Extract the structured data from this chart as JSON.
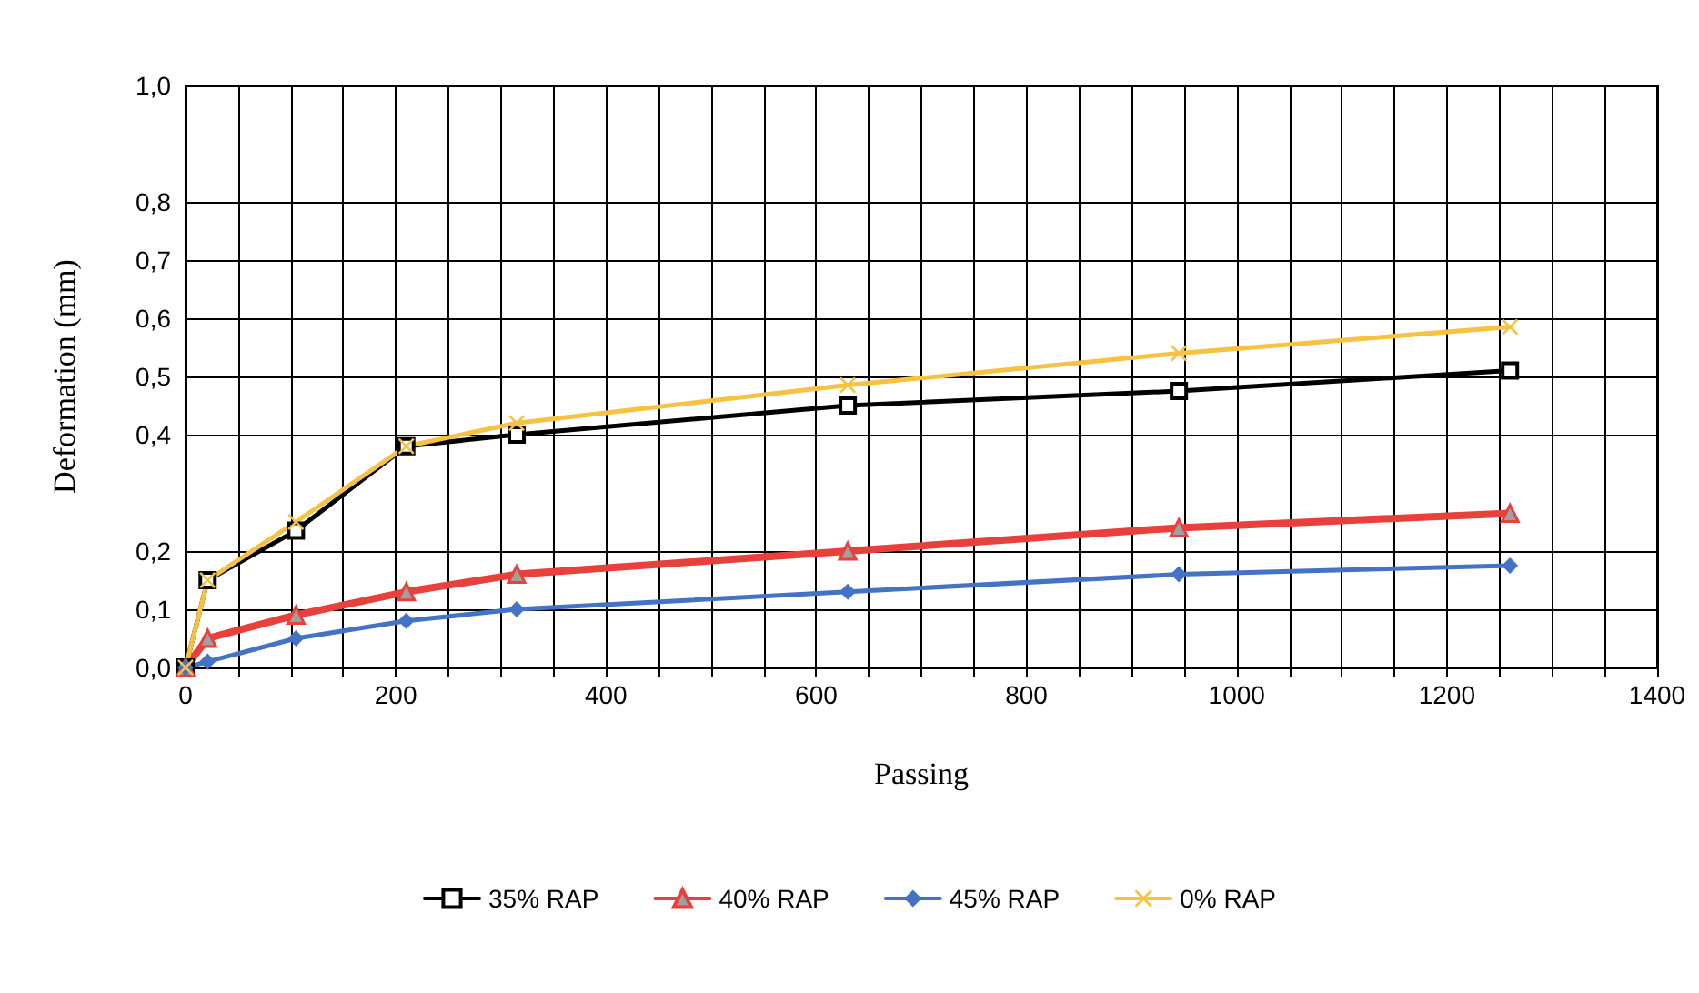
{
  "chart_data": {
    "type": "line",
    "xlabel": "Passing",
    "ylabel": "Deformation (mm)",
    "x": [
      0,
      21,
      105,
      210,
      315,
      630,
      945,
      1260
    ],
    "series": [
      {
        "name": "35% RAP",
        "color": "#000000",
        "marker": "square",
        "values": [
          0,
          0.15,
          0.235,
          0.38,
          0.4,
          0.45,
          0.475,
          0.51
        ]
      },
      {
        "name": "40% RAP",
        "color": "#e8403a",
        "marker": "triangle",
        "values": [
          0,
          0.05,
          0.09,
          0.13,
          0.16,
          0.2,
          0.24,
          0.265
        ]
      },
      {
        "name": "45% RAP",
        "color": "#4472c4",
        "marker": "diamond",
        "values": [
          0,
          0.01,
          0.05,
          0.08,
          0.1,
          0.13,
          0.16,
          0.175
        ]
      },
      {
        "name": "0% RAP",
        "color": "#f5c242",
        "marker": "cross",
        "values": [
          0,
          0.15,
          0.25,
          0.38,
          0.42,
          0.485,
          0.54,
          0.585
        ]
      }
    ],
    "xlim": [
      0,
      1400
    ],
    "xticks": [
      0,
      {
        "value": 50,
        "label": null
      },
      {
        "value": 100,
        "label": null
      },
      {
        "value": 150,
        "label": null
      },
      200,
      {
        "value": 250,
        "label": null
      },
      {
        "value": 300,
        "label": null
      },
      {
        "value": 350,
        "label": null
      },
      400,
      {
        "value": 450,
        "label": null
      },
      {
        "value": 500,
        "label": null
      },
      {
        "value": 550,
        "label": null
      },
      600,
      {
        "value": 650,
        "label": null
      },
      {
        "value": 700,
        "label": null
      },
      {
        "value": 750,
        "label": null
      },
      800,
      {
        "value": 850,
        "label": null
      },
      {
        "value": 900,
        "label": null
      },
      {
        "value": 950,
        "label": null
      },
      1000,
      {
        "value": 1050,
        "label": null
      },
      {
        "value": 1100,
        "label": null
      },
      {
        "value": 1150,
        "label": null
      },
      1200,
      {
        "value": 1250,
        "label": null
      },
      {
        "value": 1300,
        "label": null
      },
      {
        "value": 1350,
        "label": null
      },
      1400
    ],
    "ylim": [
      0,
      1
    ],
    "yticks": [
      {
        "value": 0,
        "label": "0,0"
      },
      {
        "value": 0.1,
        "label": "0,1"
      },
      {
        "value": 0.2,
        "label": "0,2"
      },
      {
        "value": 0.4,
        "label": "0,4"
      },
      {
        "value": 0.5,
        "label": "0,5"
      },
      {
        "value": 0.6,
        "label": "0,6"
      },
      {
        "value": 0.7,
        "label": "0,7"
      },
      {
        "value": 0.8,
        "label": "0,8"
      },
      {
        "value": 1,
        "label": "1,0"
      }
    ],
    "grid": true,
    "legend": "bottom",
    "line_style": "solid"
  }
}
